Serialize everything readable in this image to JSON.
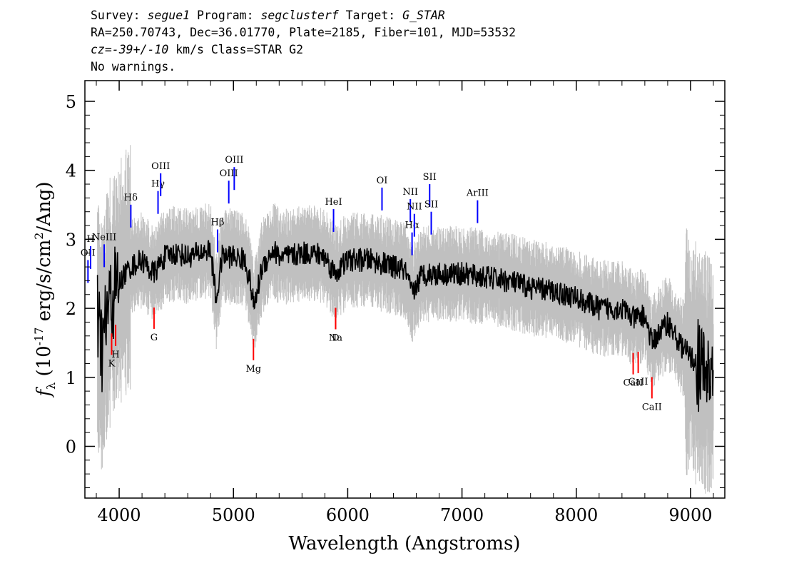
{
  "header": {
    "line1": {
      "survey_label": "Survey: ",
      "survey": "segue1",
      "program_label": " Program: ",
      "program": "segclusterf",
      "target_label": " Target: ",
      "target": "G_STAR"
    },
    "line2": "RA=250.70743, Dec=36.01770, Plate=2185, Fiber=101, MJD=53532",
    "line3": {
      "cz": "cz=-39+/-10",
      "rest": " km/s Class=STAR G2"
    },
    "line4": "No warnings."
  },
  "chart_data": {
    "type": "line",
    "xlabel": "Wavelength (Angstroms)",
    "ylabel_prefix": "f",
    "ylabel_sub": "λ",
    "ylabel_main": " (10",
    "ylabel_exp": "-17",
    "ylabel_units": " erg/s/cm",
    "ylabel_exp2": "2",
    "ylabel_end": "/Ang)",
    "xlim": [
      3700,
      9300
    ],
    "ylim": [
      -0.75,
      5.3
    ],
    "xticks": [
      4000,
      5000,
      6000,
      7000,
      8000,
      9000
    ],
    "yticks": [
      0,
      1,
      2,
      3,
      4,
      5
    ],
    "colors": {
      "flux": "#000000",
      "noise": "#c0c0c0",
      "emission": "#0000ff",
      "absorption": "#ff0000"
    },
    "series": [
      {
        "x": [
          3810,
          3850,
          3900,
          3950,
          3980,
          4050,
          4100,
          4200,
          4300,
          4400,
          4500,
          4600,
          4700,
          4800,
          4850,
          4900,
          5000,
          5100,
          5150,
          5180,
          5250,
          5350,
          5400,
          5500,
          5600,
          5700,
          5800,
          5890,
          6000,
          6100,
          6200,
          6300,
          6400,
          6500,
          6563,
          6650,
          6800,
          7000,
          7200,
          7400,
          7600,
          7800,
          8000,
          8200,
          8400,
          8500,
          8600,
          8660,
          8800,
          8900,
          9000,
          9100,
          9200
        ],
        "y": [
          1.8,
          1.4,
          2.0,
          2.2,
          2.3,
          2.5,
          2.6,
          2.7,
          2.5,
          2.75,
          2.8,
          2.75,
          2.8,
          2.85,
          2.1,
          2.75,
          2.75,
          2.7,
          2.35,
          2.0,
          2.6,
          2.85,
          2.75,
          2.75,
          2.8,
          2.8,
          2.75,
          2.5,
          2.7,
          2.7,
          2.7,
          2.65,
          2.6,
          2.55,
          2.2,
          2.5,
          2.5,
          2.5,
          2.45,
          2.4,
          2.3,
          2.25,
          2.15,
          2.0,
          2.0,
          1.85,
          1.9,
          1.5,
          1.8,
          1.5,
          1.3,
          1.1,
          1.0
        ]
      }
    ],
    "emission_lines": [
      {
        "label": "OII",
        "x": 3727
      },
      {
        "label": "H",
        "x": 3750
      },
      {
        "label": "NeIII",
        "x": 3869
      },
      {
        "label": "Hδ",
        "x": 4102
      },
      {
        "label": "Hγ",
        "x": 4340
      },
      {
        "label": "OIII",
        "x": 4363
      },
      {
        "label": "Hβ",
        "x": 4861
      },
      {
        "label": "OIII",
        "x": 4959
      },
      {
        "label": "OIII",
        "x": 5007
      },
      {
        "label": "HeI",
        "x": 5876
      },
      {
        "label": "OI",
        "x": 6300
      },
      {
        "label": "NII",
        "x": 6548
      },
      {
        "label": "Hα",
        "x": 6563
      },
      {
        "label": "NII",
        "x": 6583
      },
      {
        "label": "SII",
        "x": 6717
      },
      {
        "label": "SII",
        "x": 6731
      },
      {
        "label": "ArIII",
        "x": 7136
      }
    ],
    "absorption_lines": [
      {
        "label": "K",
        "x": 3934
      },
      {
        "label": "H",
        "x": 3969
      },
      {
        "label": "G",
        "x": 4305
      },
      {
        "label": "Mg",
        "x": 5175
      },
      {
        "label": "Na",
        "x": 5894
      },
      {
        "label": "D",
        "x": 5894
      },
      {
        "label": "CaII",
        "x": 8498
      },
      {
        "label": "CaII",
        "x": 8542
      },
      {
        "label": "CaII",
        "x": 8662
      }
    ]
  }
}
